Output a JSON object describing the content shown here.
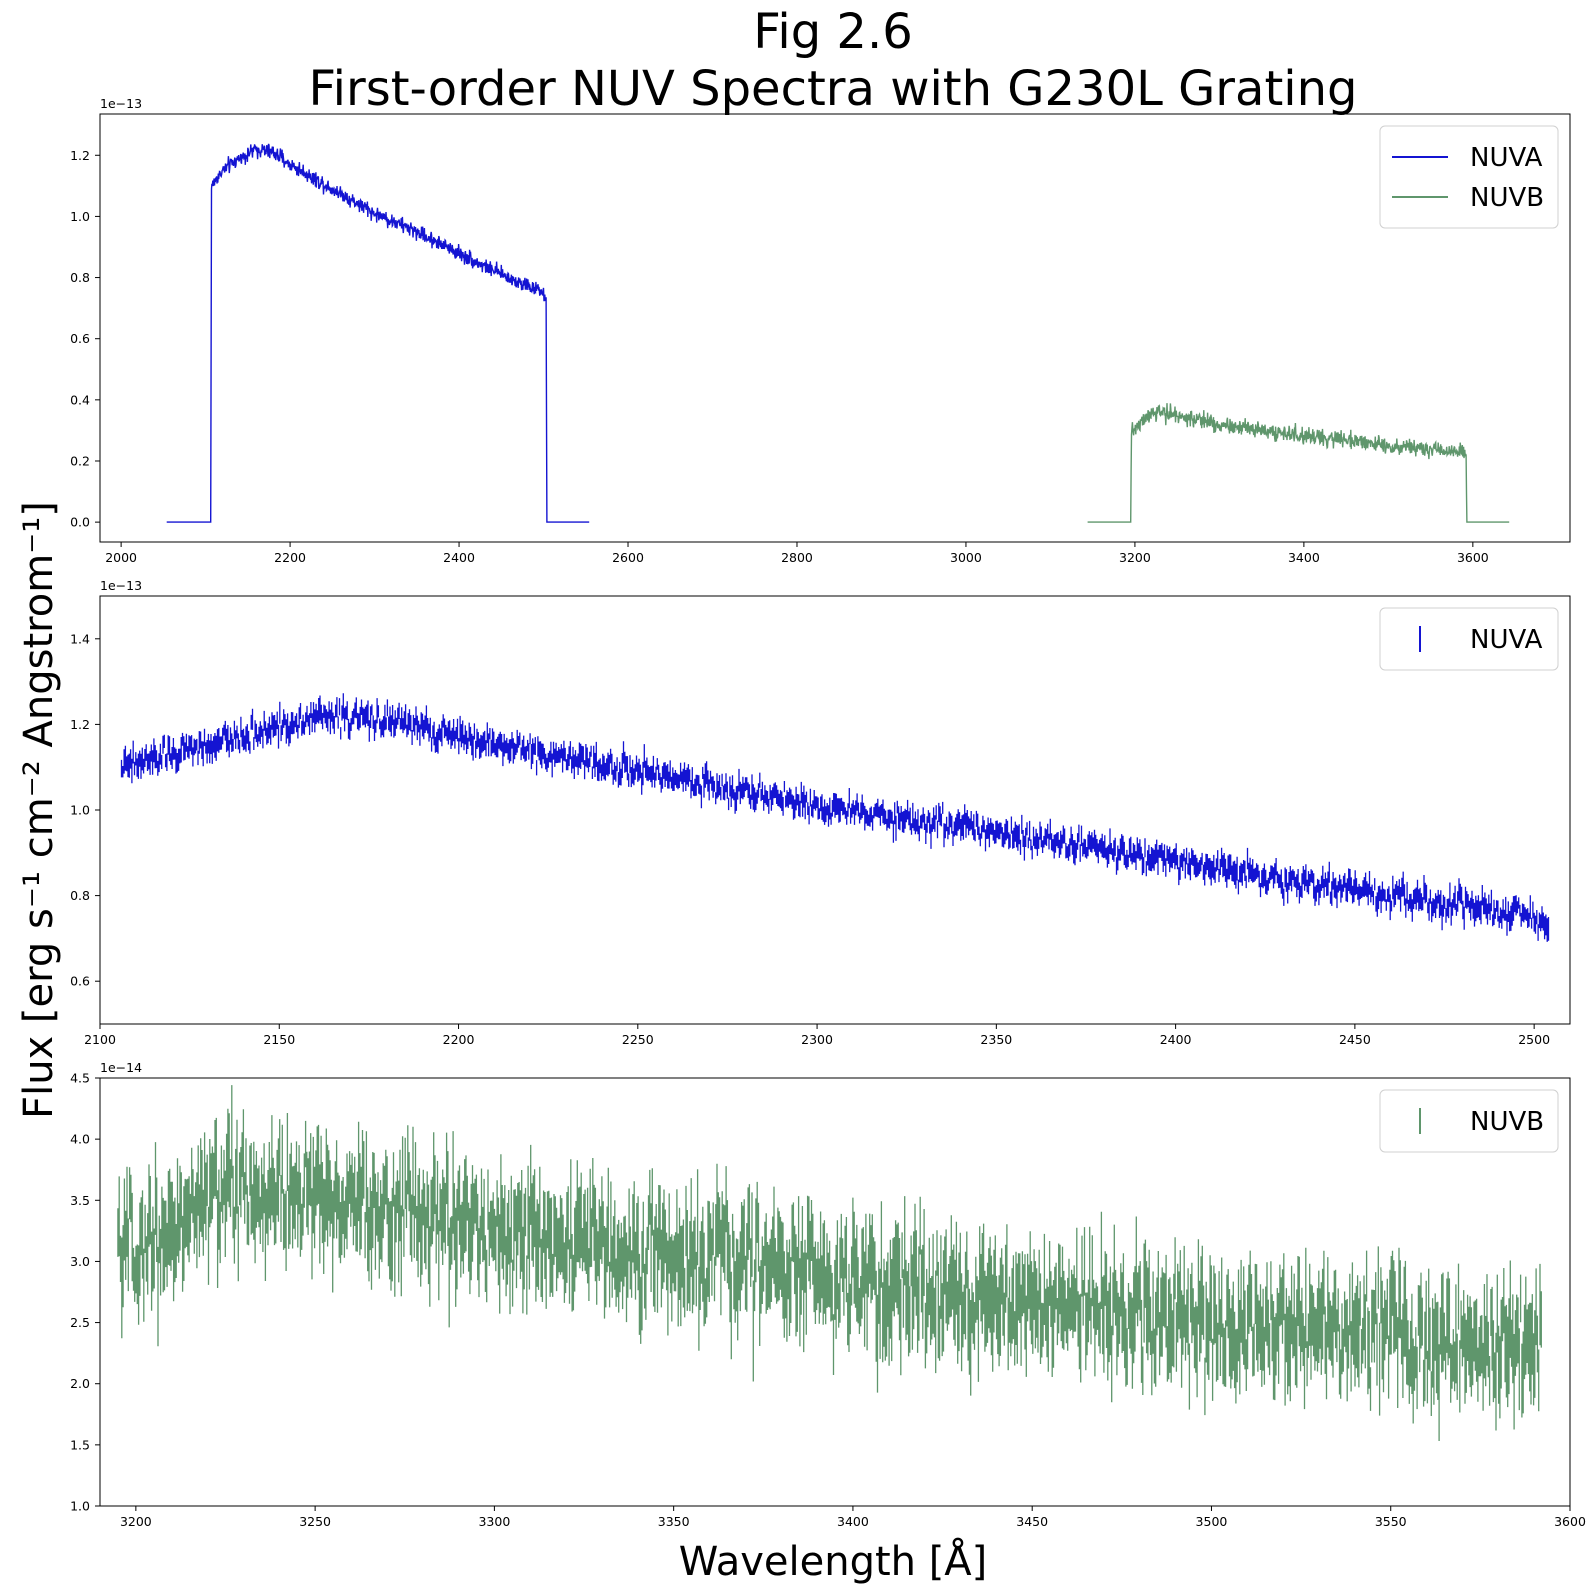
{
  "title_line1": "Fig 2.6",
  "title_line2": "First-order NUV Spectra with G230L Grating",
  "xlabel": "Wavelength [Å]",
  "ylabel": "Flux [erg s⁻¹ cm⁻² Angstrom⁻¹]",
  "colors": {
    "nuva": "#1414d2",
    "nuvb": "#5f966c"
  },
  "chart_data": [
    {
      "type": "line",
      "xlim": [
        1975,
        3715
      ],
      "ylim": [
        -0.065,
        1.335
      ],
      "offset_text": "1e−13",
      "xticks": [
        2000,
        2200,
        2400,
        2600,
        2800,
        3000,
        3200,
        3400,
        3600
      ],
      "yticks": [
        "0.0",
        "0.2",
        "0.4",
        "0.6",
        "0.8",
        "1.0",
        "1.2"
      ],
      "legend": "top-right",
      "series": [
        {
          "name": "NUVA",
          "color": "#1414d2",
          "style": "line",
          "x": [
            2054,
            2106,
            2107,
            2120,
            2140,
            2160,
            2180,
            2200,
            2250,
            2300,
            2350,
            2400,
            2450,
            2500,
            2503,
            2504,
            2554
          ],
          "y": [
            0.0,
            0.0,
            1.1,
            1.15,
            1.19,
            1.22,
            1.21,
            1.17,
            1.09,
            1.01,
            0.95,
            0.88,
            0.81,
            0.75,
            0.72,
            0.0,
            0.0
          ],
          "noise": 0.018
        },
        {
          "name": "NUVB",
          "color": "#5f966c",
          "style": "line",
          "x": [
            3144,
            3195,
            3196,
            3210,
            3225,
            3250,
            3300,
            3350,
            3400,
            3450,
            3500,
            3550,
            3590,
            3592,
            3593,
            3643
          ],
          "y": [
            0.0,
            0.0,
            0.3,
            0.33,
            0.36,
            0.35,
            0.32,
            0.3,
            0.28,
            0.27,
            0.25,
            0.24,
            0.23,
            0.22,
            0.0,
            0.0
          ],
          "noise": 0.02
        }
      ]
    },
    {
      "type": "line",
      "xlim": [
        2100,
        2510
      ],
      "ylim": [
        0.5,
        1.5
      ],
      "offset_text": "1e−13",
      "xticks": [
        2100,
        2150,
        2200,
        2250,
        2300,
        2350,
        2400,
        2450,
        2500
      ],
      "yticks": [
        "0.6",
        "0.8",
        "1.0",
        "1.2",
        "1.4"
      ],
      "legend": "top-right",
      "series": [
        {
          "name": "NUVA",
          "color": "#1414d2",
          "style": "errorbar",
          "x": [
            2106,
            2120,
            2140,
            2160,
            2180,
            2200,
            2250,
            2300,
            2350,
            2400,
            2450,
            2500,
            2504
          ],
          "y": [
            1.1,
            1.13,
            1.17,
            1.22,
            1.21,
            1.17,
            1.09,
            1.01,
            0.95,
            0.88,
            0.81,
            0.75,
            0.72
          ],
          "noise": 0.025
        }
      ]
    },
    {
      "type": "line",
      "xlim": [
        3190,
        3600
      ],
      "ylim": [
        1.0,
        4.5
      ],
      "offset_text": "1e−14",
      "xticks": [
        3200,
        3250,
        3300,
        3350,
        3400,
        3450,
        3500,
        3550,
        3600
      ],
      "yticks": [
        "1.0",
        "1.5",
        "2.0",
        "2.5",
        "3.0",
        "3.5",
        "4.0",
        "4.5"
      ],
      "legend": "top-right",
      "series": [
        {
          "name": "NUVB",
          "color": "#5f966c",
          "style": "errorbar",
          "x": [
            3195,
            3210,
            3225,
            3250,
            3275,
            3300,
            3350,
            3400,
            3450,
            3500,
            3550,
            3592
          ],
          "y": [
            3.0,
            3.3,
            3.6,
            3.5,
            3.4,
            3.25,
            3.05,
            2.85,
            2.65,
            2.5,
            2.4,
            2.3
          ],
          "noise": 0.35
        }
      ]
    }
  ]
}
